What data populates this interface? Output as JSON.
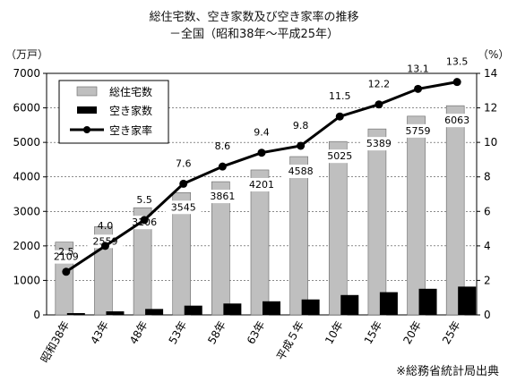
{
  "header": {
    "title_line1": "総住宅数、空き家数及び空き家率の推移",
    "title_line2": "－全国（昭和38年～平成25年）",
    "unit_left": "（万戸）",
    "unit_right": "（%）"
  },
  "source": "※総務省統計局出典",
  "chart_data": {
    "type": "bar",
    "categories": [
      "昭和38年",
      "43年",
      "48年",
      "53年",
      "58年",
      "63年",
      "平成５年",
      "10年",
      "15年",
      "20年",
      "25年"
    ],
    "series": [
      {
        "name": "総住宅数",
        "kind": "bar",
        "axis": "left",
        "color": "#bfbfbf",
        "values": [
          2109,
          2559,
          3106,
          3545,
          3861,
          4201,
          4588,
          5025,
          5389,
          5759,
          6063
        ]
      },
      {
        "name": "空き家数",
        "kind": "bar",
        "axis": "left",
        "color": "#000000",
        "values": [
          52,
          103,
          172,
          268,
          330,
          394,
          448,
          576,
          659,
          757,
          820
        ]
      },
      {
        "name": "空き家率",
        "kind": "line",
        "axis": "right",
        "color": "#000000",
        "values": [
          2.5,
          4.0,
          5.5,
          7.6,
          8.6,
          9.4,
          9.8,
          11.5,
          12.2,
          13.1,
          13.5
        ]
      }
    ],
    "bar_value_labels": [
      "2109",
      "2559",
      "3106",
      "3545",
      "3861",
      "4201",
      "4588",
      "5025",
      "5389",
      "5759",
      "6063"
    ],
    "rate_value_labels": [
      "2.5",
      "4.0",
      "5.5",
      "7.6",
      "8.6",
      "9.4",
      "9.8",
      "11.5",
      "12.2",
      "13.1",
      "13.5"
    ],
    "y_left": {
      "ylim": [
        0,
        7000
      ],
      "ticks": [
        "0",
        "1000",
        "2000",
        "3000",
        "4000",
        "5000",
        "6000",
        "7000"
      ]
    },
    "y_right": {
      "ylim": [
        0,
        14
      ],
      "ticks": [
        "0",
        "2",
        "4",
        "6",
        "8",
        "10",
        "12",
        "14"
      ]
    },
    "grid": true,
    "legend_position": "top-left"
  }
}
